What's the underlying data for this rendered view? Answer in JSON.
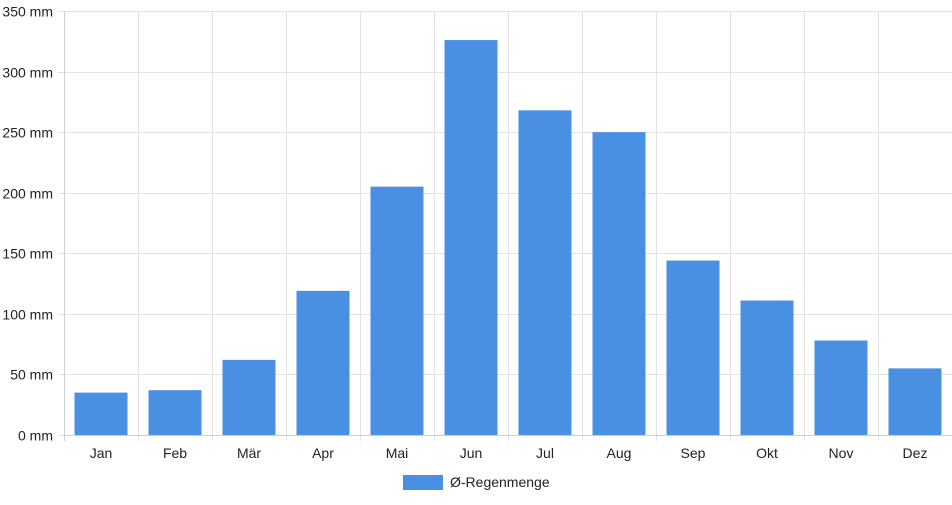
{
  "chart_data": {
    "type": "bar",
    "categories": [
      "Jan",
      "Feb",
      "Mär",
      "Apr",
      "Mai",
      "Jun",
      "Jul",
      "Aug",
      "Sep",
      "Okt",
      "Nov",
      "Dez"
    ],
    "series": [
      {
        "name": "Ø-Regenmenge",
        "color": "#4a90e2",
        "values": [
          35,
          37,
          62,
          119,
          205,
          326,
          268,
          250,
          144,
          111,
          78,
          55
        ]
      }
    ],
    "ylim": [
      0,
      350
    ],
    "yticks": [
      "0 mm",
      "50 mm",
      "100 mm",
      "150 mm",
      "200 mm",
      "250 mm",
      "300 mm",
      "350 mm"
    ],
    "ytick_values": [
      0,
      50,
      100,
      150,
      200,
      250,
      300,
      350
    ],
    "grid": true,
    "legend": "bottom-center"
  }
}
